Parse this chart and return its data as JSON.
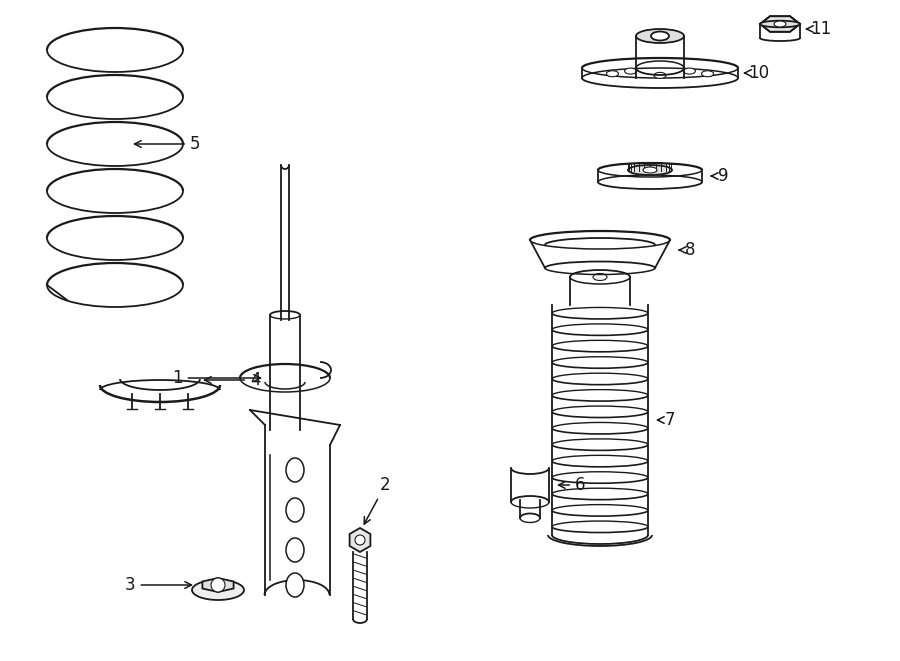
{
  "bg_color": "#ffffff",
  "line_color": "#1a1a1a",
  "fig_width": 9.0,
  "fig_height": 6.61,
  "dpi": 100,
  "lw": 1.3
}
